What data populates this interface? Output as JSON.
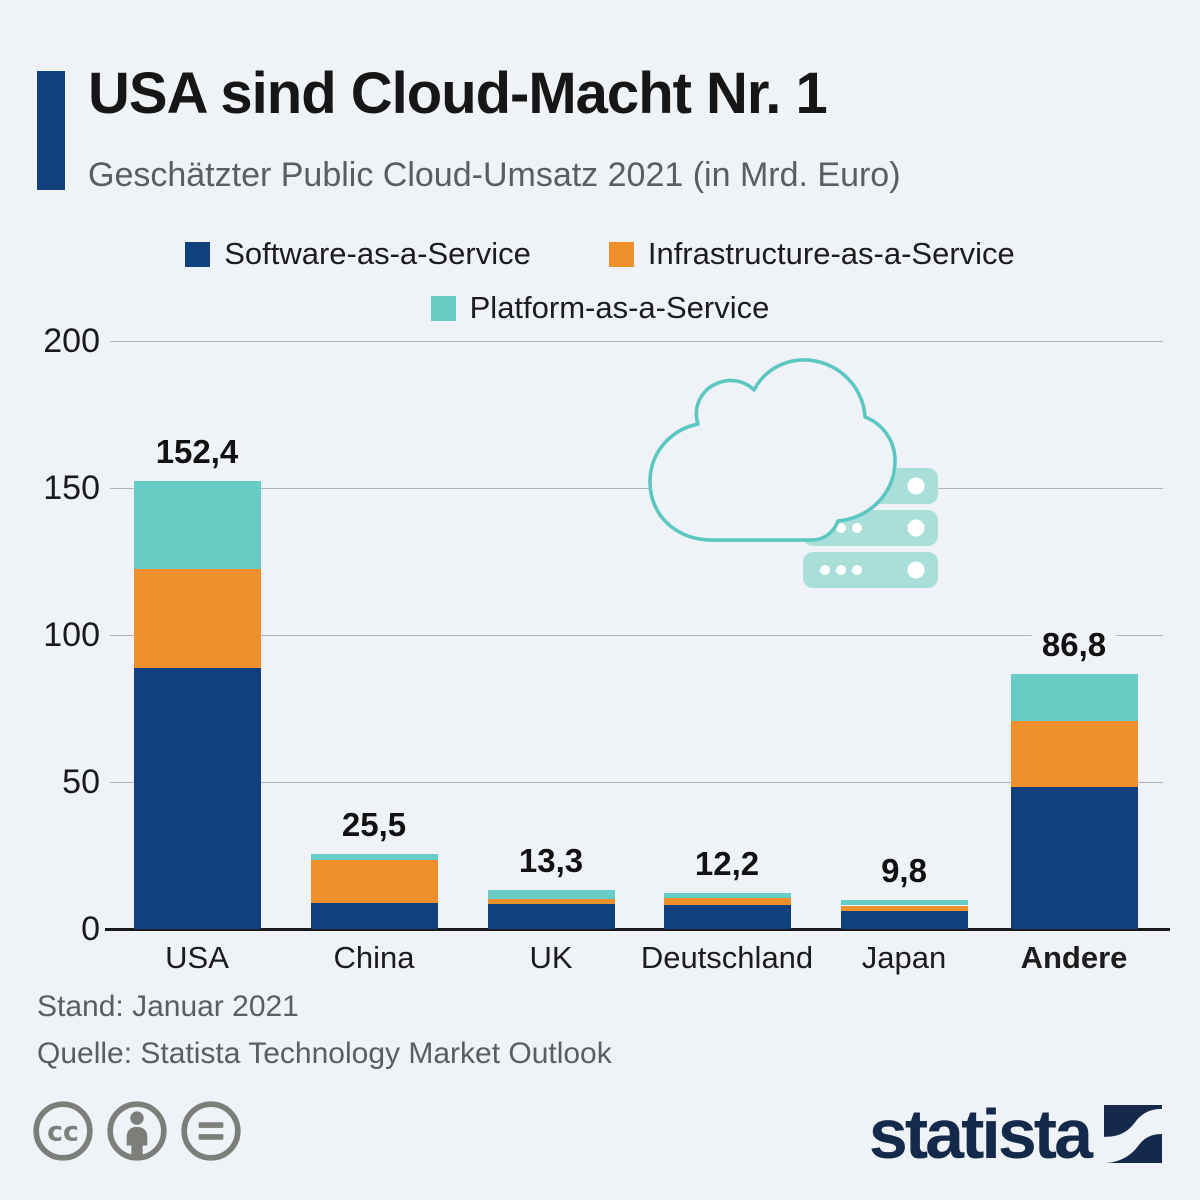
{
  "header": {
    "title": "USA sind Cloud-Macht Nr. 1",
    "subtitle": "Geschätzter Public Cloud-Umsatz 2021 (in Mrd. Euro)"
  },
  "chart_data": {
    "type": "bar",
    "stacked": true,
    "title": "USA sind Cloud-Macht Nr. 1",
    "subtitle": "Geschätzter Public Cloud-Umsatz 2021 (in Mrd. Euro)",
    "unit": "Mrd. Euro",
    "categories": [
      "USA",
      "China",
      "UK",
      "Deutschland",
      "Japan",
      "Andere"
    ],
    "bold_category": "Andere",
    "series": [
      {
        "name": "Software-as-a-Service",
        "color": "#11407e",
        "values": [
          88.8,
          8.8,
          8.4,
          8.0,
          6.0,
          48.4
        ]
      },
      {
        "name": "Infrastructure-as-a-Service",
        "color": "#f0902c",
        "values": [
          33.7,
          14.7,
          1.7,
          2.5,
          2.0,
          22.4
        ]
      },
      {
        "name": "Platform-as-a-Service",
        "color": "#67ccc6",
        "values": [
          29.9,
          2.0,
          3.2,
          1.7,
          1.8,
          16.0
        ]
      }
    ],
    "totals": [
      152.4,
      25.5,
      13.3,
      12.2,
      9.8,
      86.8
    ],
    "total_labels": [
      "152,4",
      "25,5",
      "13,3",
      "12,2",
      "9,8",
      "86,8"
    ],
    "y_ticks": [
      0,
      50,
      100,
      150,
      200
    ],
    "ylim": [
      0,
      200
    ],
    "grid": true,
    "legend_position": "top"
  },
  "footer": {
    "stand": "Stand: Januar 2021",
    "quelle": "Quelle: Statista Technology Market Outlook"
  },
  "branding": {
    "logo_text": "statista",
    "logo_color": "#15294b"
  },
  "license": {
    "icons": [
      "cc-icon",
      "attribution-person-icon",
      "no-derivatives-equals-icon"
    ]
  },
  "decoration": {
    "icon": "cloud-with-server-icon",
    "cloud_stroke": "#5cc7c0",
    "server_fill": "#a9ded9"
  },
  "colors": {
    "background": "#eff3f8",
    "saas": "#11407e",
    "iaas": "#f0902c",
    "paas": "#67ccc6",
    "gridline": "#b0b5ba",
    "axis": "#1a1a1a"
  }
}
